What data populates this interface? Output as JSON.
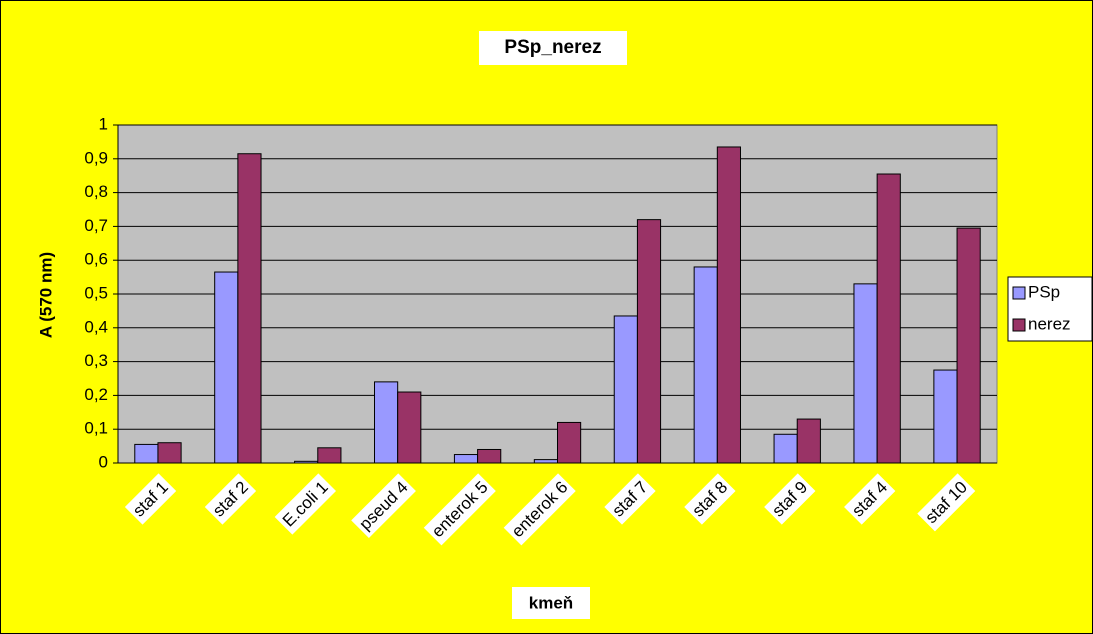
{
  "chart_data": {
    "type": "bar",
    "title": "PSp_nerez",
    "x_label": "kmeň",
    "y_label": "A (570 nm)",
    "categories": [
      "staf 1",
      "staf 2",
      "E.coli 1",
      "pseud 4",
      "enterok 5",
      "enterok 6",
      "staf 7",
      "staf 8",
      "staf 9",
      "staf 4",
      "staf 10"
    ],
    "series": [
      {
        "name": "PSp",
        "color": "#9999ff",
        "values": [
          0.055,
          0.565,
          0.005,
          0.24,
          0.025,
          0.01,
          0.435,
          0.58,
          0.085,
          0.53,
          0.275
        ]
      },
      {
        "name": "nerez",
        "color": "#993366",
        "values": [
          0.06,
          0.915,
          0.045,
          0.21,
          0.04,
          0.12,
          0.72,
          0.935,
          0.13,
          0.855,
          0.695
        ]
      }
    ],
    "ylim": [
      0,
      1
    ],
    "yticks": [
      0,
      {
        "value": 0.1,
        "label": "0,1"
      },
      {
        "value": 0.2,
        "label": "0,2"
      },
      {
        "value": 0.3,
        "label": "0,3"
      },
      {
        "value": 0.4,
        "label": "0,4"
      },
      {
        "value": 0.5,
        "label": "0,5"
      },
      {
        "value": 0.6,
        "label": "0,6"
      },
      {
        "value": 0.7,
        "label": "0,7"
      },
      {
        "value": 0.8,
        "label": "0,8"
      },
      {
        "value": 0.9,
        "label": "0,9"
      },
      1
    ],
    "grid": true,
    "legend": "right"
  }
}
